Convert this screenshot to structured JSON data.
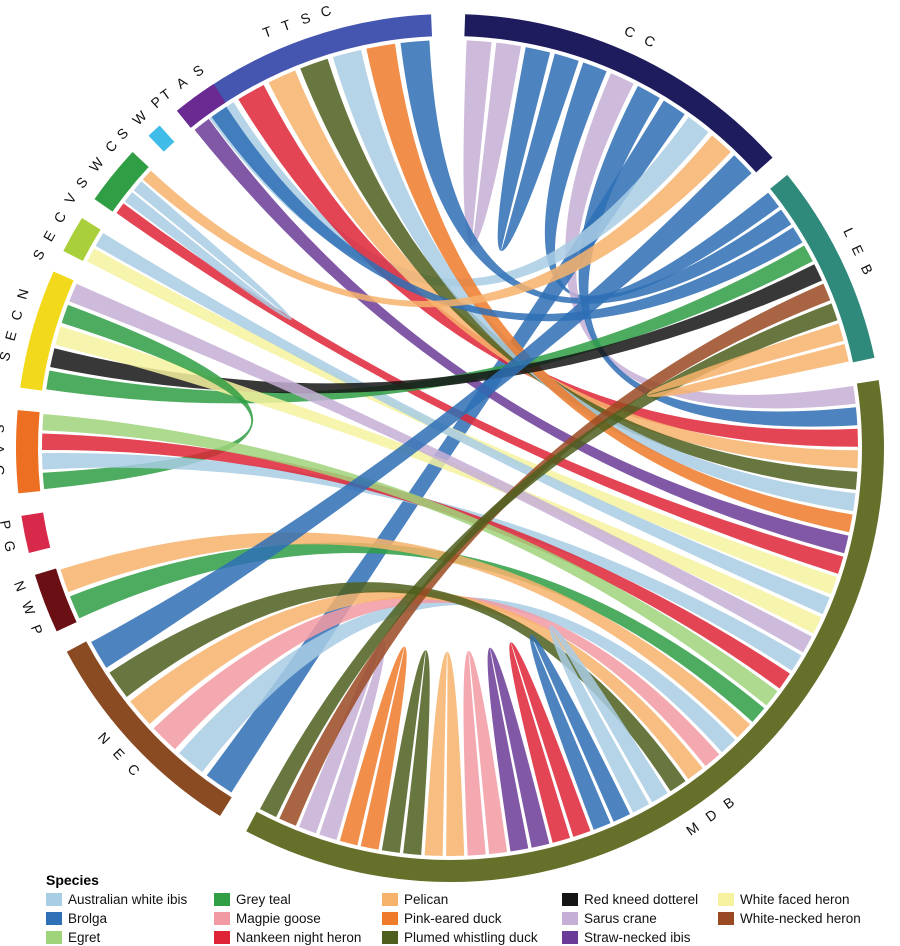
{
  "legend": {
    "title": "Species",
    "items": [
      {
        "label": "Australian white ibis",
        "color": "#a9cde4"
      },
      {
        "label": "Grey teal",
        "color": "#2f9e44"
      },
      {
        "label": "Pelican",
        "color": "#f7b26b"
      },
      {
        "label": "Red kneed dotterel",
        "color": "#151515"
      },
      {
        "label": "White faced heron",
        "color": "#f6f2a0"
      },
      {
        "label": "Brolga",
        "color": "#2e6fb5"
      },
      {
        "label": "Magpie goose",
        "color": "#f29aa3"
      },
      {
        "label": "Pink-eared duck",
        "color": "#ee7a2a"
      },
      {
        "label": "Sarus crane",
        "color": "#c6afd6"
      },
      {
        "label": "White-necked heron",
        "color": "#9a4a22"
      },
      {
        "label": "Egret",
        "color": "#9fd47a"
      },
      {
        "label": "Nankeen night heron",
        "color": "#de2436"
      },
      {
        "label": "Plumed whistling duck",
        "color": "#4e5f1e"
      },
      {
        "label": "Straw-necked ibis",
        "color": "#6a3b97"
      }
    ]
  },
  "regions": [
    {
      "label": "T T S C",
      "color": "#4556b0"
    },
    {
      "label": "C C",
      "color": "#1f1c5e"
    },
    {
      "label": "L E B",
      "color": "#2f8a7c"
    },
    {
      "label": "M D B",
      "color": "#66702a"
    },
    {
      "label": "N E C",
      "color": "#8a4a22"
    },
    {
      "label": "N W P",
      "color": "#6a0f14"
    },
    {
      "label": "P G",
      "color": "#d9294a"
    },
    {
      "label": "S A G",
      "color": "#ec6f22"
    },
    {
      "label": "S E C N",
      "color": "#f2d91c"
    },
    {
      "label": "S E C V",
      "color": "#a9cf3a"
    },
    {
      "label": "S W C",
      "color": "#2f9e44"
    },
    {
      "label": "S W P",
      "color": "#3fbde8"
    },
    {
      "label": "T A S",
      "color": "#6a2a92"
    }
  ],
  "links": [
    {
      "from": "C C",
      "to": "C C",
      "species": "Sarus crane"
    },
    {
      "from": "C C",
      "to": "C C",
      "species": "Brolga"
    },
    {
      "from": "C C",
      "to": "L E B",
      "species": "Brolga"
    },
    {
      "from": "C C",
      "to": "M D B",
      "species": "Sarus crane"
    },
    {
      "from": "C C",
      "to": "M D B",
      "species": "Brolga"
    },
    {
      "from": "C C",
      "to": "N E C",
      "species": "Brolga"
    },
    {
      "from": "C C",
      "to": "T T S C",
      "species": "Australian white ibis"
    },
    {
      "from": "T T S C",
      "to": "M D B",
      "species": "Nankeen night heron"
    },
    {
      "from": "T T S C",
      "to": "M D B",
      "species": "Pelican"
    },
    {
      "from": "T T S C",
      "to": "M D B",
      "species": "Plumed whistling duck"
    },
    {
      "from": "T T S C",
      "to": "M D B",
      "species": "Australian white ibis"
    },
    {
      "from": "T T S C",
      "to": "M D B",
      "species": "Pink-eared duck"
    },
    {
      "from": "T T S C",
      "to": "L E B",
      "species": "Brolga"
    },
    {
      "from": "T A S",
      "to": "M D B",
      "species": "Straw-necked ibis"
    },
    {
      "from": "T A S",
      "to": "L E B",
      "species": "Brolga"
    },
    {
      "from": "S W C",
      "to": "M D B",
      "species": "Nankeen night heron"
    },
    {
      "from": "S W C",
      "to": "S W C",
      "species": "Australian white ibis"
    },
    {
      "from": "S W C",
      "to": "C C",
      "species": "Pelican"
    },
    {
      "from": "S E C V",
      "to": "M D B",
      "species": "White faced heron"
    },
    {
      "from": "S E C V",
      "to": "M D B",
      "species": "Australian white ibis"
    },
    {
      "from": "S E C N",
      "to": "L E B",
      "species": "Grey teal"
    },
    {
      "from": "S E C N",
      "to": "L E B",
      "species": "Red kneed dotterel"
    },
    {
      "from": "S E C N",
      "to": "M D B",
      "species": "White faced heron"
    },
    {
      "from": "S E C N",
      "to": "S A G",
      "species": "Grey teal"
    },
    {
      "from": "S E C N",
      "to": "M D B",
      "species": "Sarus crane"
    },
    {
      "from": "S A G",
      "to": "M D B",
      "species": "Australian white ibis"
    },
    {
      "from": "S A G",
      "to": "M D B",
      "species": "Nankeen night heron"
    },
    {
      "from": "S A G",
      "to": "M D B",
      "species": "Egret"
    },
    {
      "from": "N W P",
      "to": "M D B",
      "species": "Grey teal"
    },
    {
      "from": "N W P",
      "to": "M D B",
      "species": "Pelican"
    },
    {
      "from": "N E C",
      "to": "M D B",
      "species": "Australian white ibis"
    },
    {
      "from": "N E C",
      "to": "M D B",
      "species": "Magpie goose"
    },
    {
      "from": "N E C",
      "to": "M D B",
      "species": "Pelican"
    },
    {
      "from": "N E C",
      "to": "M D B",
      "species": "Plumed whistling duck"
    },
    {
      "from": "N E C",
      "to": "C C",
      "species": "Brolga"
    },
    {
      "from": "M D B",
      "to": "M D B",
      "species": "Australian white ibis"
    },
    {
      "from": "M D B",
      "to": "M D B",
      "species": "Brolga"
    },
    {
      "from": "M D B",
      "to": "M D B",
      "species": "Nankeen night heron"
    },
    {
      "from": "M D B",
      "to": "M D B",
      "species": "Straw-necked ibis"
    },
    {
      "from": "M D B",
      "to": "M D B",
      "species": "Magpie goose"
    },
    {
      "from": "M D B",
      "to": "M D B",
      "species": "Pelican"
    },
    {
      "from": "M D B",
      "to": "M D B",
      "species": "Plumed whistling duck"
    },
    {
      "from": "M D B",
      "to": "M D B",
      "species": "Pink-eared duck"
    },
    {
      "from": "M D B",
      "to": "M D B",
      "species": "Sarus crane"
    },
    {
      "from": "M D B",
      "to": "L E B",
      "species": "White-necked heron"
    },
    {
      "from": "M D B",
      "to": "L E B",
      "species": "Plumed whistling duck"
    },
    {
      "from": "L E B",
      "to": "L E B",
      "species": "Pelican"
    }
  ]
}
